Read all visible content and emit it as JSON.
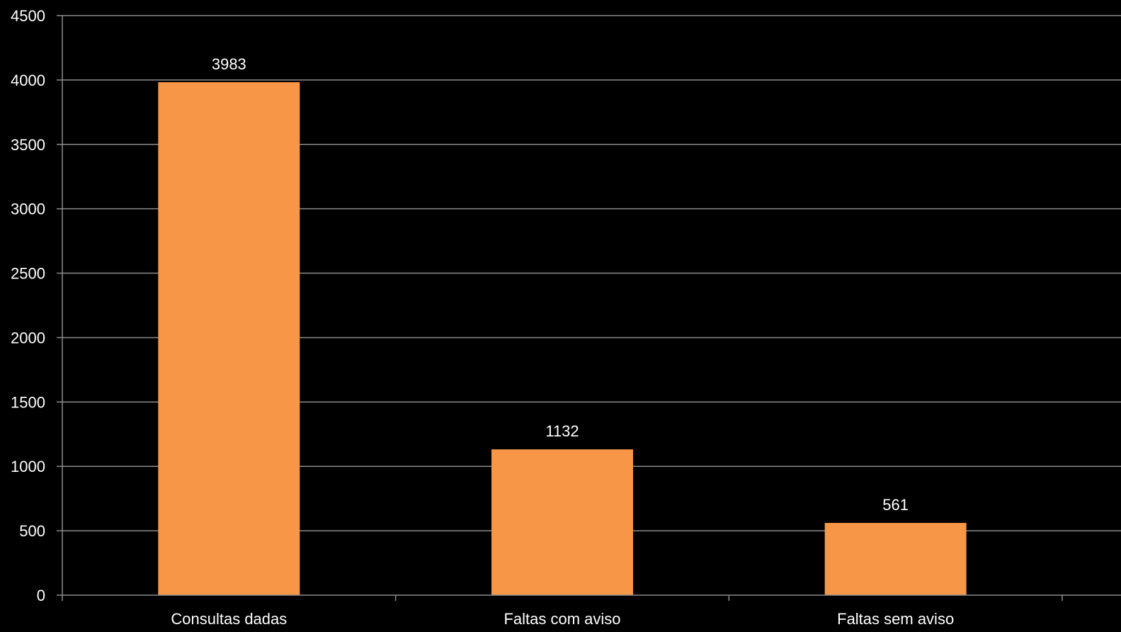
{
  "chart_data": {
    "type": "bar",
    "categories": [
      "Consultas dadas",
      "Faltas com aviso",
      "Faltas sem aviso"
    ],
    "values": [
      3983,
      1132,
      561
    ],
    "data_labels": [
      "3983",
      "1132",
      "561"
    ],
    "title": "",
    "xlabel": "",
    "ylabel": "",
    "ylim": [
      0,
      4500
    ],
    "yticks": [
      0,
      500,
      1000,
      1500,
      2000,
      2500,
      3000,
      3500,
      4000,
      4500
    ],
    "ytick_labels": [
      "0",
      "500",
      "1000",
      "1500",
      "2000",
      "2500",
      "3000",
      "3500",
      "4000",
      "4500"
    ],
    "grid": true,
    "legend": "none",
    "colors": {
      "background": "#000000",
      "bar": "#f79646",
      "grid": "#8c8c8c",
      "axis": "#8c8c8c",
      "text": "#ffffff"
    }
  }
}
